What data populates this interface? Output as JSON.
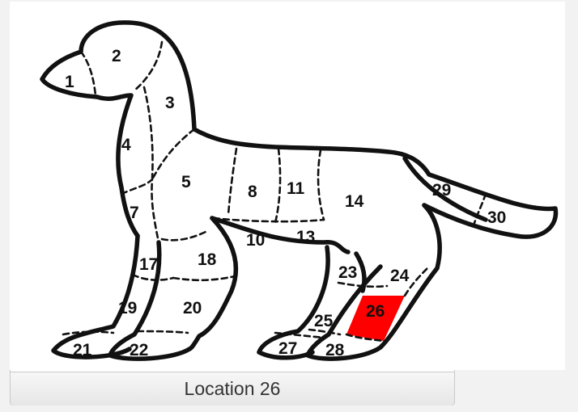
{
  "diagram": {
    "highlight_color": "#ff0000",
    "highlighted_region": "26",
    "region_labels": [
      "1",
      "2",
      "3",
      "4",
      "5",
      "7",
      "8",
      "10",
      "11",
      "13",
      "14",
      "17",
      "18",
      "19",
      "20",
      "21",
      "22",
      "23",
      "24",
      "25",
      "26",
      "27",
      "28",
      "29",
      "30"
    ]
  },
  "caption": {
    "text": "Location 26"
  }
}
